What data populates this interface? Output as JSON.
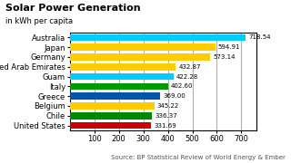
{
  "chart_data": {
    "type": "bar",
    "orientation": "horizontal",
    "title": "Solar Power Generation",
    "subtitle": "in kWh per capita",
    "annotations": [
      "Source: BP Statistical Review of World Energy & Ember"
    ],
    "categories": [
      "United States",
      "Chile",
      "Belgium",
      "Greece",
      "Italy",
      "Guam",
      "United Arab Emirates",
      "Germany",
      "Japan",
      "Australia"
    ],
    "values": [
      331.69,
      336.37,
      345.22,
      369.0,
      402.6,
      422.28,
      432.87,
      573.14,
      594.91,
      718.54
    ],
    "value_labels": [
      "331.69",
      "336.37",
      "345.22",
      "369.00",
      "402.60",
      "422.28",
      "432.87",
      "573.14",
      "594.91",
      "718.54"
    ],
    "data_labels": true,
    "colors": [
      "#cc0000",
      "#008800",
      "#ffcc00",
      "#0055aa",
      "#009900",
      "#00ccff",
      "#ffcc00",
      "#ffcc00",
      "#ffcc00",
      "#00ccff"
    ],
    "xlim": [
      0,
      760
    ],
    "xticks": [
      100,
      200,
      300,
      400,
      500,
      600,
      700
    ],
    "grid": true
  }
}
